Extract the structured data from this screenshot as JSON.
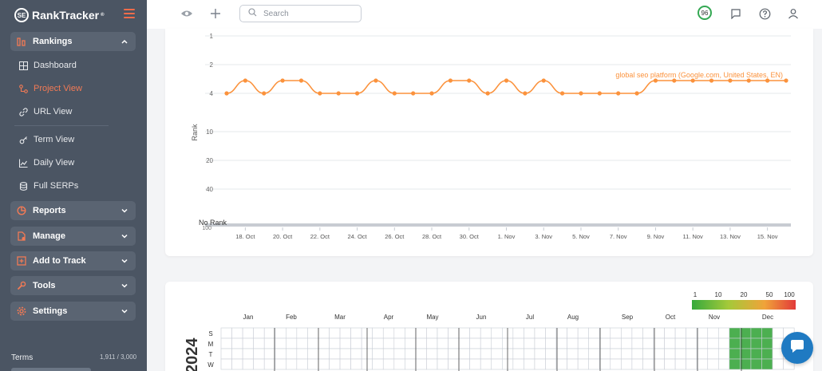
{
  "app": {
    "logo_text": "RankTracker",
    "logo_mark": "SE",
    "trademark": "®",
    "brand_color": "#f27a55"
  },
  "sidebar": {
    "groups": [
      {
        "label": "Rankings",
        "icon": "rankings-icon",
        "expanded": true
      },
      {
        "label": "Reports",
        "icon": "reports-icon",
        "expanded": false
      },
      {
        "label": "Manage",
        "icon": "manage-icon",
        "expanded": false
      },
      {
        "label": "Add to Track",
        "icon": "add-to-track-icon",
        "expanded": false
      },
      {
        "label": "Tools",
        "icon": "tools-icon",
        "expanded": false
      },
      {
        "label": "Settings",
        "icon": "settings-icon",
        "expanded": false
      }
    ],
    "items": [
      {
        "label": "Dashboard",
        "icon": "dashboard-icon",
        "active": false
      },
      {
        "label": "Project View",
        "icon": "project-view-icon",
        "active": true
      },
      {
        "label": "URL View",
        "icon": "link-icon",
        "active": false
      },
      {
        "label": "Term View",
        "icon": "key-icon",
        "active": false
      },
      {
        "label": "Daily View",
        "icon": "line-chart-icon",
        "active": false
      },
      {
        "label": "Full SERPs",
        "icon": "database-icon",
        "active": false
      }
    ],
    "terms": "Terms",
    "quota": "1,911 / 3,000"
  },
  "topbar": {
    "search_placeholder": "Search",
    "score": "96",
    "icons": [
      "eye-icon",
      "plus-icon",
      "search-icon",
      "comment-icon",
      "help-icon",
      "user-icon"
    ]
  },
  "chart_data": {
    "type": "line",
    "ylabel": "Rank",
    "y_ticks": [
      "1",
      "2",
      "4",
      "10",
      "20",
      "40",
      "No Rank",
      "100"
    ],
    "y_reversed": true,
    "x_ticks": [
      "18. Oct",
      "20. Oct",
      "22. Oct",
      "24. Oct",
      "26. Oct",
      "28. Oct",
      "30. Oct",
      "1. Nov",
      "3. Nov",
      "5. Nov",
      "7. Nov",
      "9. Nov",
      "11. Nov",
      "13. Nov",
      "15. Nov"
    ],
    "series": [
      {
        "name": "global seo platform (Google.com, United States, EN)",
        "color": "#fb923c",
        "x": [
          "17. Oct",
          "18. Oct",
          "19. Oct",
          "20. Oct",
          "21. Oct",
          "22. Oct",
          "23. Oct",
          "24. Oct",
          "25. Oct",
          "26. Oct",
          "27. Oct",
          "28. Oct",
          "29. Oct",
          "30. Oct",
          "31. Oct",
          "1. Nov",
          "2. Nov",
          "3. Nov",
          "4. Nov",
          "5. Nov",
          "6. Nov",
          "7. Nov",
          "8. Nov",
          "9. Nov",
          "10. Nov",
          "11. Nov",
          "12. Nov",
          "13. Nov",
          "14. Nov",
          "15. Nov",
          "16. Nov"
        ],
        "values": [
          4,
          3,
          4,
          3,
          3,
          4,
          4,
          4,
          3,
          4,
          4,
          4,
          3,
          3,
          4,
          3,
          4,
          3,
          4,
          4,
          4,
          4,
          4,
          3,
          3,
          3,
          3,
          3,
          3,
          3,
          3
        ]
      }
    ],
    "grid": true
  },
  "calendar": {
    "legend_ticks": [
      "1",
      "10",
      "20",
      "50",
      "100"
    ],
    "legend_colors": [
      "#35a93c",
      "#a4c93a",
      "#f0a33a",
      "#e23a3a"
    ],
    "months": [
      "Jan",
      "Feb",
      "Mar",
      "Apr",
      "May",
      "Jun",
      "Jul",
      "Aug",
      "Sep",
      "Oct",
      "Nov",
      "Dec"
    ],
    "weekdays": [
      "S",
      "M",
      "T",
      "W"
    ],
    "year_label": "2024",
    "cell_color": "#4caf50"
  }
}
